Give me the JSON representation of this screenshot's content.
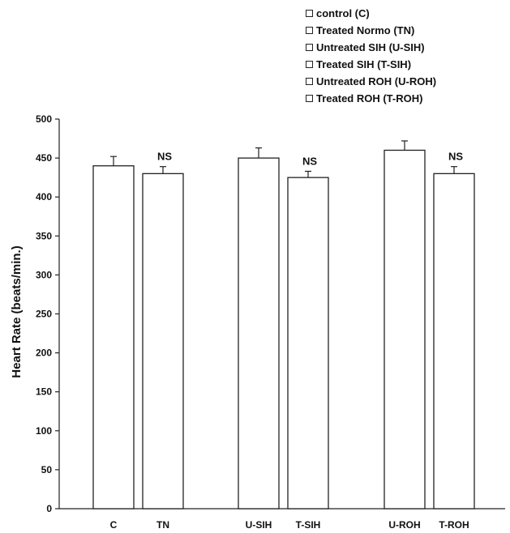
{
  "chart_data": {
    "type": "bar",
    "title": "",
    "xlabel": "",
    "ylabel": "Heart Rate (beats/min.)",
    "ylim": [
      0,
      500
    ],
    "yticks": [
      0,
      50,
      100,
      150,
      200,
      250,
      300,
      350,
      400,
      450,
      500
    ],
    "categories": [
      "C",
      "TN",
      "U-SIH",
      "T-SIH",
      "U-ROH",
      "T-ROH"
    ],
    "values": [
      440,
      430,
      450,
      425,
      460,
      430
    ],
    "errors": [
      12,
      9,
      13,
      8,
      12,
      9
    ],
    "annotations": [
      "",
      "NS",
      "",
      "NS",
      "",
      "NS"
    ],
    "legend": {
      "position": "top-right",
      "entries": [
        "control (C)",
        "Treated Normo (TN)",
        "Untreated SIH (U-SIH)",
        "Treated SIH (T-SIH)",
        "Untreated ROH (U-ROH)",
        "Treated ROH (T-ROH)"
      ]
    },
    "bar_fill": "#ffffff",
    "bar_stroke": "#222222"
  }
}
